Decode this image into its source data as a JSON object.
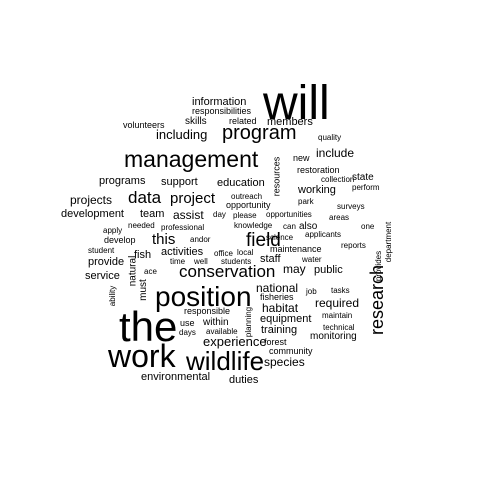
{
  "words": [
    {
      "text": "will",
      "weight": 48
    },
    {
      "text": "the",
      "weight": 42
    },
    {
      "text": "work",
      "weight": 32
    },
    {
      "text": "position",
      "weight": 28
    },
    {
      "text": "wildlife",
      "weight": 26
    },
    {
      "text": "management",
      "weight": 23
    },
    {
      "text": "program",
      "weight": 20
    },
    {
      "text": "research",
      "weight": 18
    },
    {
      "text": "conservation",
      "weight": 17
    },
    {
      "text": "field",
      "weight": 19
    },
    {
      "text": "data",
      "weight": 17
    },
    {
      "text": "project",
      "weight": 15
    },
    {
      "text": "this",
      "weight": 15
    },
    {
      "text": "experience",
      "weight": 13
    },
    {
      "text": "including",
      "weight": 13
    },
    {
      "text": "projects",
      "weight": 12
    },
    {
      "text": "assist",
      "weight": 12
    },
    {
      "text": "habitat",
      "weight": 12
    },
    {
      "text": "species",
      "weight": 12
    },
    {
      "text": "may",
      "weight": 12
    },
    {
      "text": "include",
      "weight": 12
    },
    {
      "text": "required",
      "weight": 12
    },
    {
      "text": "national",
      "weight": 12
    },
    {
      "text": "information",
      "weight": 11
    },
    {
      "text": "members",
      "weight": 11
    },
    {
      "text": "education",
      "weight": 11
    },
    {
      "text": "support",
      "weight": 11
    },
    {
      "text": "programs",
      "weight": 11
    },
    {
      "text": "working",
      "weight": 11
    },
    {
      "text": "development",
      "weight": 11
    },
    {
      "text": "team",
      "weight": 11
    },
    {
      "text": "provide",
      "weight": 11
    },
    {
      "text": "service",
      "weight": 11
    },
    {
      "text": "staff",
      "weight": 11
    },
    {
      "text": "public",
      "weight": 11
    },
    {
      "text": "equipment",
      "weight": 11
    },
    {
      "text": "activities",
      "weight": 11
    },
    {
      "text": "fish",
      "weight": 11
    },
    {
      "text": "duties",
      "weight": 11
    },
    {
      "text": "environmental",
      "weight": 11
    },
    {
      "text": "training",
      "weight": 11
    },
    {
      "text": "within",
      "weight": 10
    },
    {
      "text": "monitoring",
      "weight": 10
    },
    {
      "text": "state",
      "weight": 10
    },
    {
      "text": "skills",
      "weight": 10
    },
    {
      "text": "responsibilities",
      "weight": 9
    },
    {
      "text": "related",
      "weight": 9
    },
    {
      "text": "volunteers",
      "weight": 9
    },
    {
      "text": "quality",
      "weight": 8
    },
    {
      "text": "new",
      "weight": 9
    },
    {
      "text": "restoration",
      "weight": 9
    },
    {
      "text": "collection",
      "weight": 8
    },
    {
      "text": "perform",
      "weight": 8
    },
    {
      "text": "outreach",
      "weight": 8
    },
    {
      "text": "opportunity",
      "weight": 9
    },
    {
      "text": "park",
      "weight": 8
    },
    {
      "text": "surveys",
      "weight": 8
    },
    {
      "text": "areas",
      "weight": 8
    },
    {
      "text": "day",
      "weight": 8
    },
    {
      "text": "please",
      "weight": 8
    },
    {
      "text": "opportunities",
      "weight": 8
    },
    {
      "text": "one",
      "weight": 8
    },
    {
      "text": "needed",
      "weight": 8
    },
    {
      "text": "professional",
      "weight": 8
    },
    {
      "text": "knowledge",
      "weight": 8
    },
    {
      "text": "can",
      "weight": 8
    },
    {
      "text": "applicants",
      "weight": 8
    },
    {
      "text": "apply",
      "weight": 8
    },
    {
      "text": "develop",
      "weight": 9
    },
    {
      "text": "andor",
      "weight": 8
    },
    {
      "text": "science",
      "weight": 8
    },
    {
      "text": "reports",
      "weight": 8
    },
    {
      "text": "student",
      "weight": 8
    },
    {
      "text": "office",
      "weight": 8
    },
    {
      "text": "local",
      "weight": 8
    },
    {
      "text": "maintenance",
      "weight": 9
    },
    {
      "text": "water",
      "weight": 8
    },
    {
      "text": "time",
      "weight": 8
    },
    {
      "text": "well",
      "weight": 8
    },
    {
      "text": "students",
      "weight": 8
    },
    {
      "text": "ace",
      "weight": 8
    },
    {
      "text": "fisheries",
      "weight": 9
    },
    {
      "text": "job",
      "weight": 8
    },
    {
      "text": "tasks",
      "weight": 8
    },
    {
      "text": "maintain",
      "weight": 8
    },
    {
      "text": "responsible",
      "weight": 9
    },
    {
      "text": "use",
      "weight": 9
    },
    {
      "text": "days",
      "weight": 8
    },
    {
      "text": "available",
      "weight": 8
    },
    {
      "text": "technical",
      "weight": 8
    },
    {
      "text": "forest",
      "weight": 9
    },
    {
      "text": "community",
      "weight": 9
    },
    {
      "text": "also",
      "weight": 10
    },
    {
      "text": "resources",
      "weight": 9
    },
    {
      "text": "natural",
      "weight": 10
    },
    {
      "text": "must",
      "weight": 10
    },
    {
      "text": "ability",
      "weight": 8
    },
    {
      "text": "planning",
      "weight": 8
    },
    {
      "text": "provides",
      "weight": 8
    },
    {
      "text": "department",
      "weight": 8
    }
  ]
}
